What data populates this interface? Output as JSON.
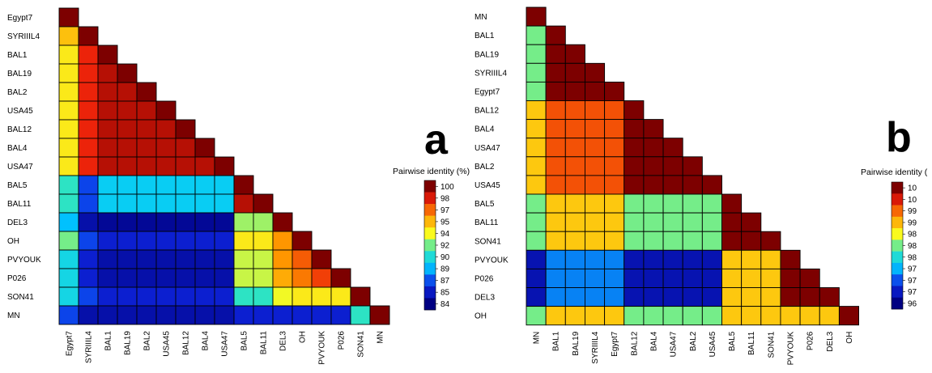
{
  "chart_data": [
    {
      "type": "heatmap",
      "panel_label": "a",
      "legend_title": "Pairwise identity (%)",
      "legend_ticks": [
        "100",
        "98",
        "97",
        "95",
        "94",
        "92",
        "90",
        "89",
        "87",
        "85",
        "84"
      ],
      "legend_range": [
        84,
        100
      ],
      "labels": [
        "Egypt7",
        "SYRIIIL4",
        "BAL1",
        "BAL19",
        "BAL2",
        "USA45",
        "BAL12",
        "BAL4",
        "USA47",
        "BAL5",
        "BAL11",
        "DEL3",
        "OH",
        "PVYOUK",
        "P026",
        "SON41",
        "MN"
      ],
      "values": [
        [
          100
        ],
        [
          95,
          100
        ],
        [
          94,
          98,
          100
        ],
        [
          94,
          98,
          99,
          100
        ],
        [
          94,
          98,
          99,
          99,
          100
        ],
        [
          94,
          98,
          99,
          99,
          99,
          100
        ],
        [
          94,
          98,
          99,
          99,
          99,
          99,
          100
        ],
        [
          94,
          98,
          99,
          99,
          99,
          99,
          99,
          100
        ],
        [
          94,
          98,
          99,
          99,
          99,
          99,
          99,
          99,
          100
        ],
        [
          91,
          87,
          89.5,
          89.5,
          89.5,
          89.5,
          89.5,
          89.5,
          89.5,
          100
        ],
        [
          91,
          87,
          89.5,
          89.5,
          89.5,
          89.5,
          89.5,
          89.5,
          89.5,
          99,
          100
        ],
        [
          89,
          85,
          84.5,
          84.5,
          84.5,
          84.5,
          84.5,
          84.5,
          84.5,
          92.5,
          92.5,
          100
        ],
        [
          92,
          87,
          86,
          86,
          86,
          86,
          86,
          86,
          86,
          94,
          94,
          96,
          100
        ],
        [
          90,
          86,
          85,
          85,
          85,
          85,
          85,
          85,
          85,
          93,
          93,
          96,
          97,
          100
        ],
        [
          90,
          86,
          85,
          85,
          85,
          85,
          85,
          85,
          85,
          93,
          93,
          95.5,
          96.5,
          97.5,
          100
        ],
        [
          90,
          87,
          86,
          86,
          86,
          86,
          86,
          86,
          86,
          91,
          91,
          93.5,
          94,
          94,
          94,
          100
        ],
        [
          87,
          85,
          85,
          85,
          85,
          85,
          85,
          85,
          85,
          86,
          86,
          86,
          86,
          86,
          86,
          91,
          100
        ]
      ]
    },
    {
      "type": "heatmap",
      "panel_label": "b",
      "legend_title": "Pairwise identity (",
      "legend_ticks": [
        "10",
        "10",
        "99",
        "99",
        "98",
        "98",
        "98",
        "97",
        "97",
        "97",
        "96"
      ],
      "legend_range": [
        96,
        100
      ],
      "labels": [
        "MN",
        "BAL1",
        "BAL19",
        "SYRIIIL4",
        "Egypt7",
        "BAL12",
        "BAL4",
        "USA47",
        "BAL2",
        "USA45",
        "BAL5",
        "BAL11",
        "SON41",
        "PVYOUK",
        "P026",
        "DEL3",
        "OH"
      ],
      "values": [
        [
          100
        ],
        [
          98,
          100
        ],
        [
          98,
          100,
          100
        ],
        [
          98,
          100,
          100,
          100
        ],
        [
          98,
          100,
          100,
          100,
          100
        ],
        [
          98.7,
          99.3,
          99.3,
          99.3,
          99.3,
          100
        ],
        [
          98.7,
          99.3,
          99.3,
          99.3,
          99.3,
          100,
          100
        ],
        [
          98.7,
          99.3,
          99.3,
          99.3,
          99.3,
          100,
          100,
          100
        ],
        [
          98.7,
          99.3,
          99.3,
          99.3,
          99.3,
          100,
          100,
          100,
          100
        ],
        [
          98.7,
          99.3,
          99.3,
          99.3,
          99.3,
          100,
          100,
          100,
          100,
          100
        ],
        [
          98,
          98.7,
          98.7,
          98.7,
          98.7,
          98,
          98,
          98,
          98,
          98,
          100
        ],
        [
          98,
          98.7,
          98.7,
          98.7,
          98.7,
          98,
          98,
          98,
          98,
          98,
          100,
          100
        ],
        [
          98,
          98.7,
          98.7,
          98.7,
          98.7,
          98,
          98,
          98,
          98,
          98,
          100,
          100,
          100
        ],
        [
          96.3,
          97,
          97,
          97,
          97,
          96.3,
          96.3,
          96.3,
          96.3,
          96.3,
          98.7,
          98.7,
          98.7,
          100
        ],
        [
          96.3,
          97,
          97,
          97,
          97,
          96.3,
          96.3,
          96.3,
          96.3,
          96.3,
          98.7,
          98.7,
          98.7,
          100,
          100
        ],
        [
          96.3,
          97,
          97,
          97,
          97,
          96.3,
          96.3,
          96.3,
          96.3,
          96.3,
          98.7,
          98.7,
          98.7,
          100,
          100,
          100
        ],
        [
          98,
          98.7,
          98.7,
          98.7,
          98.7,
          98,
          98,
          98,
          98,
          98,
          98.7,
          98.7,
          98.7,
          98.7,
          98.7,
          98.7,
          100
        ]
      ]
    }
  ]
}
